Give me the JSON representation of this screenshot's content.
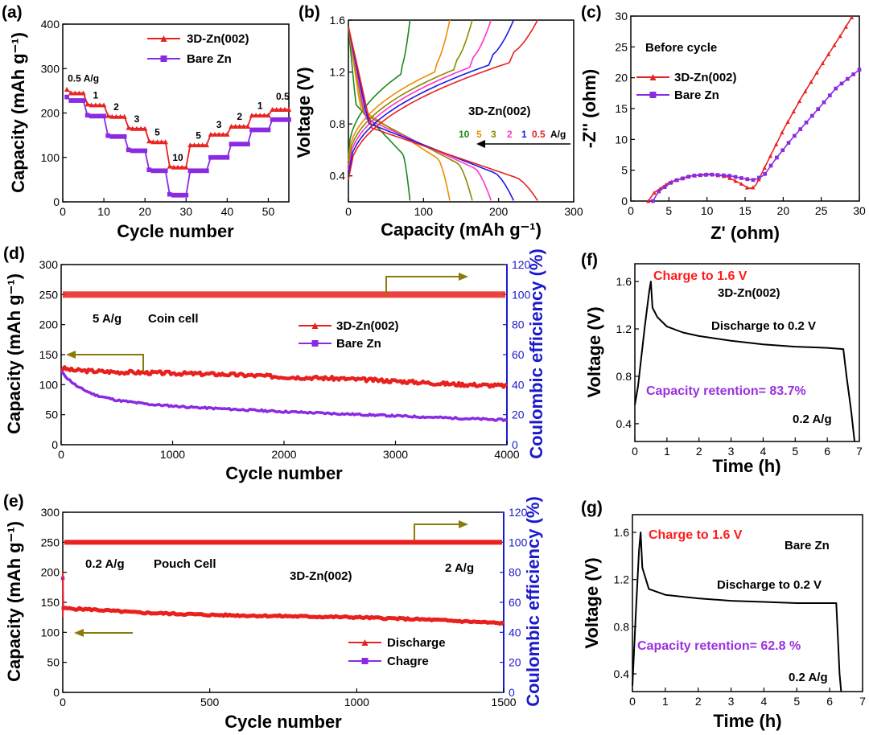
{
  "colors": {
    "red": "#e8211f",
    "purple": "#8a2be2",
    "olive": "#8a7a0a",
    "blue_axis": "#1a1acc",
    "black": "#000000"
  },
  "chart_data": [
    {
      "id": "a",
      "panel_label": "(a)",
      "type": "line",
      "xlabel": "Cycle number",
      "ylabel": "Capacity (mAh g⁻¹)",
      "xlim": [
        0,
        55
      ],
      "ylim": [
        0,
        400
      ],
      "xticks": [
        0,
        10,
        20,
        30,
        40,
        50
      ],
      "yticks": [
        0,
        100,
        200,
        300,
        400
      ],
      "rate_steps": [
        {
          "rate": "0.5 A/g",
          "cycles": [
            1,
            5
          ]
        },
        {
          "rate": "1",
          "cycles": [
            6,
            10
          ]
        },
        {
          "rate": "2",
          "cycles": [
            11,
            15
          ]
        },
        {
          "rate": "3",
          "cycles": [
            16,
            20
          ]
        },
        {
          "rate": "5",
          "cycles": [
            21,
            25
          ]
        },
        {
          "rate": "10",
          "cycles": [
            26,
            30
          ]
        },
        {
          "rate": "5",
          "cycles": [
            31,
            35
          ]
        },
        {
          "rate": "3",
          "cycles": [
            36,
            40
          ]
        },
        {
          "rate": "2",
          "cycles": [
            41,
            45
          ]
        },
        {
          "rate": "1",
          "cycles": [
            46,
            50
          ]
        },
        {
          "rate": "0.5",
          "cycles": [
            51,
            55
          ]
        }
      ],
      "series": [
        {
          "name": "3D-Zn(002)",
          "color": "#e8211f",
          "marker": "triangle",
          "levels": [
            245,
            218,
            192,
            165,
            135,
            78,
            128,
            152,
            170,
            195,
            208
          ]
        },
        {
          "name": "Bare Zn",
          "color": "#8a2be2",
          "marker": "square",
          "levels": [
            228,
            193,
            147,
            115,
            70,
            15,
            70,
            100,
            130,
            162,
            185
          ]
        }
      ]
    },
    {
      "id": "b",
      "panel_label": "(b)",
      "type": "line",
      "title": "3D-Zn(002)",
      "xlabel": "Capacity (mAh g⁻¹)",
      "ylabel": "Voltage (V)",
      "xlim": [
        0,
        300
      ],
      "ylim": [
        0.2,
        1.6
      ],
      "xticks": [
        0,
        100,
        200,
        300
      ],
      "yticks": [
        0.4,
        0.8,
        1.2,
        1.6
      ],
      "arrow_note": "A/g",
      "series": [
        {
          "name": "10",
          "color": "#1a8a1a",
          "capacity": 82
        },
        {
          "name": "5",
          "color": "#f08c00",
          "capacity": 135
        },
        {
          "name": "3",
          "color": "#8a8a00",
          "capacity": 165
        },
        {
          "name": "2",
          "color": "#ff33cc",
          "capacity": 190
        },
        {
          "name": "1",
          "color": "#1a1ae6",
          "capacity": 220
        },
        {
          "name": "0.5",
          "color": "#e8211f",
          "capacity": 252
        }
      ]
    },
    {
      "id": "c",
      "panel_label": "(c)",
      "type": "line",
      "title": "Before cycle",
      "xlabel": "Z' (ohm)",
      "ylabel": "-Z'' (ohm)",
      "xlim": [
        0,
        30
      ],
      "ylim": [
        0,
        30
      ],
      "xticks": [
        0,
        5,
        10,
        15,
        20,
        25,
        30
      ],
      "yticks": [
        0,
        5,
        10,
        15,
        20,
        25,
        30
      ],
      "series": [
        {
          "name": "3D-Zn(002)",
          "color": "#e8211f",
          "marker": "triangle",
          "points": [
            [
              2.3,
              0
            ],
            [
              3,
              1.3
            ],
            [
              5,
              3.0
            ],
            [
              7.5,
              4.0
            ],
            [
              10,
              4.4
            ],
            [
              12.5,
              4.0
            ],
            [
              14.5,
              2.8
            ],
            [
              15.5,
              2
            ],
            [
              16.3,
              2.3
            ],
            [
              18,
              6.5
            ],
            [
              20,
              11.5
            ],
            [
              22.5,
              17
            ],
            [
              25,
              22
            ],
            [
              27.5,
              26.8
            ],
            [
              29,
              29.8
            ]
          ]
        },
        {
          "name": "Bare Zn",
          "color": "#8a2be2",
          "marker": "square",
          "points": [
            [
              2.9,
              0
            ],
            [
              3.6,
              1.5
            ],
            [
              5.5,
              3.2
            ],
            [
              8,
              4.1
            ],
            [
              10.5,
              4.3
            ],
            [
              13,
              4.1
            ],
            [
              15,
              3.6
            ],
            [
              16.2,
              3.4
            ],
            [
              17.5,
              4.2
            ],
            [
              19,
              6.8
            ],
            [
              21,
              9.9
            ],
            [
              23,
              12.7
            ],
            [
              25,
              15.5
            ],
            [
              27,
              18.4
            ],
            [
              30,
              21.3
            ]
          ]
        }
      ]
    },
    {
      "id": "d",
      "panel_label": "(d)",
      "type": "line",
      "xlabel": "Cycle number",
      "ylabel": "Capacity (mAh g⁻¹)",
      "y2label": "Coulombic efficiency (%)",
      "xlim": [
        0,
        4000
      ],
      "ylim": [
        0,
        300
      ],
      "y2lim": [
        0,
        120
      ],
      "xticks": [
        0,
        1000,
        2000,
        3000,
        4000
      ],
      "yticks": [
        0,
        50,
        100,
        150,
        200,
        250,
        300
      ],
      "y2ticks": [
        0,
        20,
        40,
        60,
        80,
        100,
        120
      ],
      "annotations": [
        "5 A/g",
        "Coin cell"
      ],
      "series": [
        {
          "name": "3D-Zn(002)",
          "color": "#e8211f",
          "marker": "triangle",
          "points": [
            [
              0,
              128
            ],
            [
              100,
              124
            ],
            [
              500,
              121
            ],
            [
              1000,
              119
            ],
            [
              1500,
              117
            ],
            [
              2000,
              113
            ],
            [
              2500,
              110
            ],
            [
              3000,
              106
            ],
            [
              3500,
              101
            ],
            [
              4000,
              98
            ]
          ]
        },
        {
          "name": "Bare Zn",
          "color": "#8a2be2",
          "marker": "square",
          "points": [
            [
              0,
              122
            ],
            [
              60,
              110
            ],
            [
              150,
              96
            ],
            [
              300,
              83
            ],
            [
              500,
              74
            ],
            [
              800,
              67
            ],
            [
              1200,
              62
            ],
            [
              2000,
              55
            ],
            [
              3000,
              48
            ],
            [
              4000,
              41
            ]
          ]
        },
        {
          "name": "Coulombic efficiency",
          "color": "#e8211f",
          "axis": "y2",
          "value": 100
        }
      ]
    },
    {
      "id": "e",
      "panel_label": "(e)",
      "type": "line",
      "xlabel": "Cycle number",
      "ylabel": "Capacity (mAh g⁻¹)",
      "y2label": "Coulombic efficiency (%)",
      "xlim": [
        0,
        1500
      ],
      "ylim": [
        0,
        300
      ],
      "y2lim": [
        0,
        120
      ],
      "xticks": [
        0,
        500,
        1000,
        1500
      ],
      "yticks": [
        0,
        50,
        100,
        150,
        200,
        250,
        300
      ],
      "y2ticks": [
        0,
        20,
        40,
        60,
        80,
        100,
        120
      ],
      "annotations": [
        "0.2 A/g",
        "Pouch Cell",
        "3D-Zn(002)",
        "2 A/g"
      ],
      "series": [
        {
          "name": "Discharge",
          "color": "#e8211f",
          "marker": "triangle",
          "points": [
            [
              2,
              140
            ],
            [
              100,
              138
            ],
            [
              250,
              133
            ],
            [
              500,
              129
            ],
            [
              750,
              127
            ],
            [
              1000,
              125
            ],
            [
              1250,
              121
            ],
            [
              1500,
              115
            ]
          ]
        },
        {
          "name": "Chagre",
          "color": "#8a2be2",
          "marker": "square",
          "points": [
            [
              0,
              190
            ],
            [
              2,
              140
            ]
          ]
        },
        {
          "name": "Coulombic efficiency",
          "color": "#e8211f",
          "axis": "y2",
          "value": 100
        }
      ]
    },
    {
      "id": "f",
      "panel_label": "(f)",
      "type": "line",
      "xlabel": "Time (h)",
      "ylabel": "Voltage (V)",
      "xlim": [
        0,
        7
      ],
      "ylim": [
        0.25,
        1.75
      ],
      "xticks": [
        0,
        1,
        2,
        3,
        4,
        5,
        6,
        7
      ],
      "yticks": [
        0.4,
        0.8,
        1.2,
        1.6
      ],
      "annotations": [
        "Charge to 1.6 V",
        "3D-Zn(002)",
        "Discharge to 0.2 V",
        "Capacity retention= 83.7%",
        "0.2 A/g"
      ],
      "series": [
        {
          "name": "3D-Zn(002)",
          "color": "#000000",
          "points": [
            [
              0,
              0.56
            ],
            [
              0.1,
              0.72
            ],
            [
              0.3,
              1.2
            ],
            [
              0.45,
              1.52
            ],
            [
              0.5,
              1.6
            ],
            [
              0.55,
              1.38
            ],
            [
              0.7,
              1.3
            ],
            [
              1,
              1.22
            ],
            [
              1.5,
              1.17
            ],
            [
              2,
              1.14
            ],
            [
              3,
              1.1
            ],
            [
              4,
              1.07
            ],
            [
              5,
              1.05
            ],
            [
              6,
              1.04
            ],
            [
              6.5,
              1.03
            ],
            [
              6.6,
              0.8
            ],
            [
              6.75,
              0.5
            ],
            [
              6.85,
              0.25
            ]
          ]
        }
      ]
    },
    {
      "id": "g",
      "panel_label": "(g)",
      "type": "line",
      "xlabel": "Time (h)",
      "ylabel": "Voltage (V)",
      "xlim": [
        0,
        7
      ],
      "ylim": [
        0.25,
        1.75
      ],
      "xticks": [
        0,
        1,
        2,
        3,
        4,
        5,
        6,
        7
      ],
      "yticks": [
        0.4,
        0.8,
        1.2,
        1.6
      ],
      "annotations": [
        "Charge to 1.6 V",
        "Bare Zn",
        "Discharge to 0.2 V",
        "Capacity retention= 62.8 %",
        "0.2 A/g"
      ],
      "series": [
        {
          "name": "Bare Zn",
          "color": "#000000",
          "points": [
            [
              0,
              0.3
            ],
            [
              0.1,
              0.9
            ],
            [
              0.2,
              1.45
            ],
            [
              0.25,
              1.6
            ],
            [
              0.3,
              1.3
            ],
            [
              0.5,
              1.12
            ],
            [
              1,
              1.07
            ],
            [
              2,
              1.04
            ],
            [
              3,
              1.02
            ],
            [
              4,
              1.01
            ],
            [
              5,
              1.0
            ],
            [
              6.2,
              1.0
            ],
            [
              6.25,
              0.7
            ],
            [
              6.3,
              0.4
            ],
            [
              6.35,
              0.25
            ]
          ]
        }
      ]
    }
  ]
}
